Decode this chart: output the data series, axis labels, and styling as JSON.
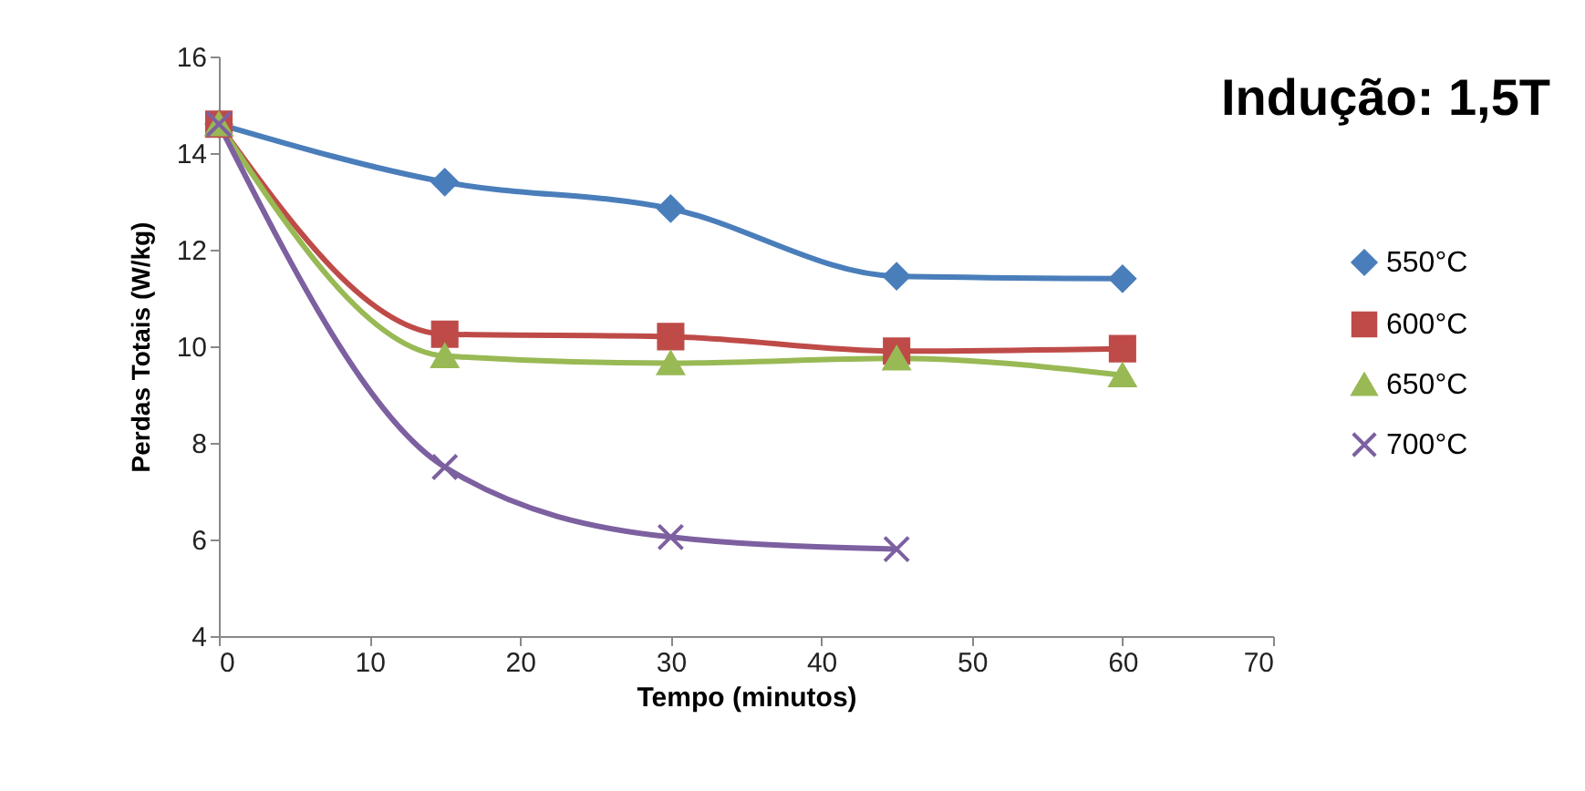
{
  "chart_data": {
    "type": "line",
    "title": "Indução: 1,5T",
    "xlabel": "Tempo (minutos)",
    "ylabel": "Perdas Totais (W/kg)",
    "xlim": [
      0,
      70
    ],
    "xticks": [
      0,
      10,
      20,
      30,
      40,
      50,
      60,
      70
    ],
    "ylim": [
      4,
      16
    ],
    "yticks": [
      4,
      6,
      8,
      10,
      12,
      14,
      16
    ],
    "grid": false,
    "legend": "right",
    "line_style": "solid",
    "series": [
      {
        "name": "550°C",
        "color": "#4a7ebb",
        "marker": "diamond",
        "x": [
          0,
          15,
          30,
          45,
          60
        ],
        "values": [
          14.6,
          13.4,
          12.85,
          11.45,
          11.4
        ]
      },
      {
        "name": "600°C",
        "color": "#be4b48",
        "marker": "square",
        "x": [
          0,
          15,
          30,
          45,
          60
        ],
        "values": [
          14.6,
          10.25,
          10.2,
          9.9,
          9.95
        ]
      },
      {
        "name": "650°C",
        "color": "#98b954",
        "marker": "triangle",
        "x": [
          0,
          15,
          30,
          45,
          60
        ],
        "values": [
          14.6,
          9.8,
          9.65,
          9.75,
          9.4
        ]
      },
      {
        "name": "700°C",
        "color": "#7d60a0",
        "marker": "cross",
        "x": [
          0,
          15,
          30,
          45
        ],
        "values": [
          14.6,
          7.5,
          6.05,
          5.8
        ]
      }
    ]
  }
}
